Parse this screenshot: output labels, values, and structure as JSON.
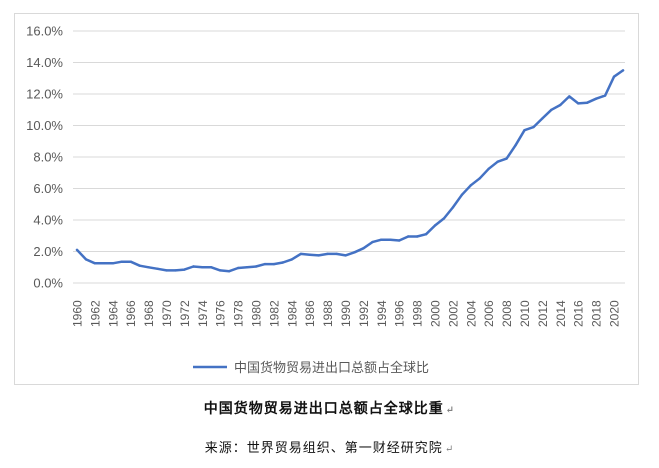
{
  "chart_data": {
    "type": "line",
    "x": [
      1960,
      1961,
      1962,
      1963,
      1964,
      1965,
      1966,
      1967,
      1968,
      1969,
      1970,
      1971,
      1972,
      1973,
      1974,
      1975,
      1976,
      1977,
      1978,
      1979,
      1980,
      1981,
      1982,
      1983,
      1984,
      1985,
      1986,
      1987,
      1988,
      1989,
      1990,
      1991,
      1992,
      1993,
      1994,
      1995,
      1996,
      1997,
      1998,
      1999,
      2000,
      2001,
      2002,
      2003,
      2004,
      2005,
      2006,
      2007,
      2008,
      2009,
      2010,
      2011,
      2012,
      2013,
      2014,
      2015,
      2016,
      2017,
      2018,
      2019,
      2020,
      2021
    ],
    "series": [
      {
        "name": "中国货物贸易进出口总额占全球比",
        "color": "#4472c4",
        "values": [
          2.1,
          1.5,
          1.25,
          1.25,
          1.25,
          1.35,
          1.35,
          1.1,
          1.0,
          0.9,
          0.8,
          0.8,
          0.85,
          1.05,
          1.0,
          1.0,
          0.8,
          0.75,
          0.95,
          1.0,
          1.05,
          1.2,
          1.2,
          1.3,
          1.5,
          1.85,
          1.8,
          1.75,
          1.85,
          1.85,
          1.75,
          1.95,
          2.2,
          2.6,
          2.75,
          2.75,
          2.7,
          2.95,
          2.95,
          3.1,
          3.65,
          4.1,
          4.8,
          5.6,
          6.2,
          6.65,
          7.25,
          7.7,
          7.9,
          8.75,
          9.7,
          9.9,
          10.45,
          11.0,
          11.3,
          11.85,
          11.4,
          11.45,
          11.7,
          11.9,
          13.1,
          13.5
        ]
      }
    ],
    "y_ticks": [
      "0.0%",
      "2.0%",
      "4.0%",
      "6.0%",
      "8.0%",
      "10.0%",
      "12.0%",
      "14.0%",
      "16.0%"
    ],
    "x_ticks": [
      "1960",
      "1962",
      "1964",
      "1966",
      "1968",
      "1970",
      "1972",
      "1974",
      "1976",
      "1978",
      "1980",
      "1982",
      "1984",
      "1986",
      "1988",
      "1990",
      "1992",
      "1994",
      "1996",
      "1998",
      "2000",
      "2002",
      "2004",
      "2006",
      "2008",
      "2010",
      "2012",
      "2014",
      "2016",
      "2018",
      "2020"
    ],
    "ylim": [
      0,
      16
    ],
    "y_unit": "%",
    "grid": "horizontal",
    "legend": "bottom-center"
  },
  "caption": {
    "title": "中国货物贸易进出口总额占全球比重",
    "source": "来源：世界贸易组织、第一财经研究院",
    "para_mark": "↵"
  }
}
